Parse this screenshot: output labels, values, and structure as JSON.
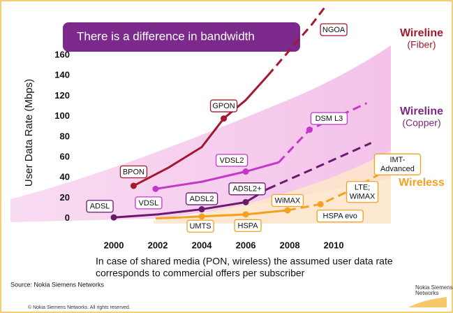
{
  "chart_data": {
    "type": "line",
    "title": "There is a difference in bandwidth",
    "y_label": "User Data Rate (Mbps)",
    "xlim": [
      1995.3,
      2012.6
    ],
    "ylim": [
      -5,
      210
    ],
    "xticks": [
      2000,
      2002,
      2004,
      2006,
      2008,
      2010
    ],
    "yticks": [
      0,
      20,
      40,
      60,
      80,
      100,
      120,
      140,
      160
    ],
    "series": [
      {
        "color": "#a3192f",
        "x": [
          2000.9,
          2002.5,
          2004,
          2005,
          2006,
          2007,
          2008,
          2009,
          2009.7
        ],
        "values": [
          32,
          50,
          70,
          98,
          116,
          140,
          165,
          190,
          210
        ],
        "labels": [
          "BPON",
          null,
          null,
          "GPON",
          null,
          null,
          null,
          null,
          null
        ],
        "dash_start": 5
      },
      {
        "color": "#c637c9",
        "x": [
          2001.9,
          2004,
          2006,
          2007.5,
          2008.9,
          2011.5
        ],
        "values": [
          29,
          36,
          46,
          55,
          87,
          113
        ],
        "labels": [
          "VDSL",
          null,
          "VDSL2",
          null,
          "DSM L3",
          null
        ],
        "dash_start": 3
      },
      {
        "color": "#6a1a6e",
        "x": [
          2000,
          2002,
          2004,
          2006,
          2007,
          2009,
          2011.7
        ],
        "values": [
          1,
          4,
          9,
          16,
          29,
          48,
          74
        ],
        "labels": [
          "ADSL",
          null,
          "ADSL2",
          "ADSL2+",
          null,
          null,
          null
        ],
        "dash_start": 4
      },
      {
        "color": "#f5a020",
        "x": [
          2001.9,
          2004,
          2006,
          2007.9,
          2009.4,
          2011,
          2012.6
        ],
        "values": [
          0,
          2,
          4,
          8,
          14,
          30,
          50
        ],
        "labels": [
          null,
          "UMTS",
          "HSPA",
          "WiMAX",
          "HSPA evo",
          null,
          null
        ],
        "dash_start": 3
      }
    ],
    "annotations": [
      {
        "lines": [
          "NGOA"
        ],
        "x": 2010,
        "y": 185,
        "color": "#a3192f"
      },
      {
        "lines": [
          "IMT-",
          "Advanced"
        ],
        "x": 2012.9,
        "y": 53,
        "color": "#f5a020"
      },
      {
        "lines": [
          "LTE;",
          "WiMAX"
        ],
        "x": 2011.3,
        "y": 26,
        "color": "#f5a020"
      }
    ],
    "legend": [
      {
        "title": "Wireline",
        "subtitle": "(Fiber)",
        "color": "#a3192f"
      },
      {
        "title": "Wireline",
        "subtitle": "(Copper)",
        "color": "#7a2a80"
      },
      {
        "title": "Wireless",
        "color": "#f5a020"
      }
    ],
    "caption": [
      "In case of shared media (PON, wireless) the assumed user data rate",
      "corresponds to commercial offers per subscriber"
    ],
    "source": "Source: Nokia Siemens Networks",
    "copyright": "© Nokia Siemens Networks. All rights reserved.",
    "logo": [
      "Nokia Siemens",
      "Networks"
    ]
  }
}
